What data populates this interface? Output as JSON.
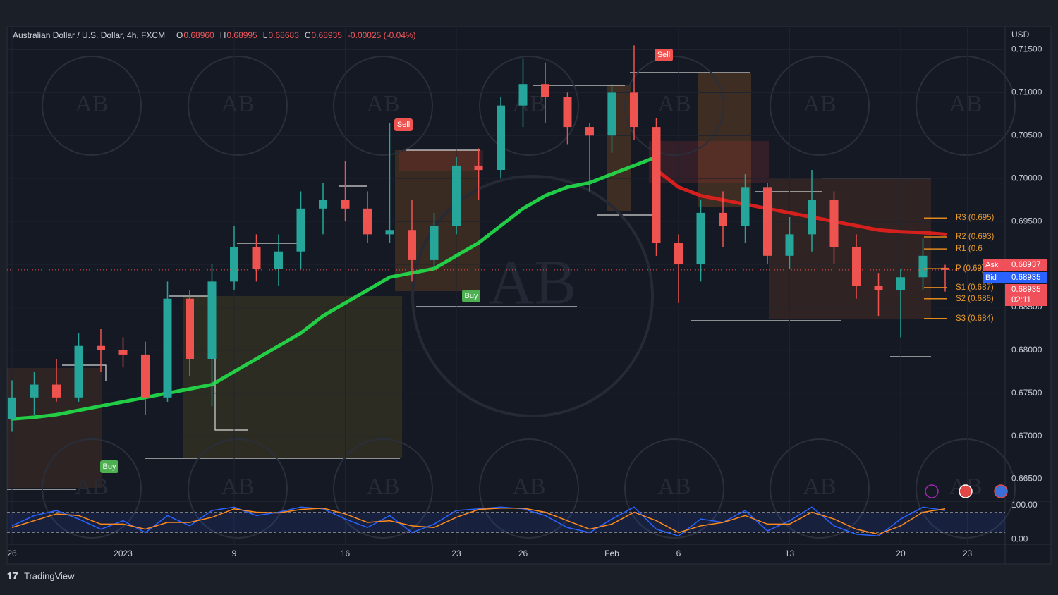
{
  "header": {
    "symbol": "Australian Dollar / U.S. Dollar, 4h, FXCM",
    "ohlc": [
      {
        "key": "O",
        "value": "0.68960"
      },
      {
        "key": "H",
        "value": "0.68995"
      },
      {
        "key": "L",
        "value": "0.68683"
      },
      {
        "key": "C",
        "value": "0.68935"
      }
    ],
    "change": "-0.00025 (-0.04%)"
  },
  "chart_data": {
    "type": "candlestick",
    "y_unit": "USD",
    "categories": [
      "26",
      null,
      null,
      null,
      null,
      "2023",
      null,
      null,
      null,
      null,
      "9",
      null,
      null,
      null,
      null,
      "16",
      null,
      null,
      null,
      null,
      "23",
      null,
      null,
      "26",
      null,
      null,
      null,
      "Feb",
      null,
      null,
      "6",
      null,
      null,
      null,
      null,
      "13",
      null,
      null,
      null,
      null,
      "20",
      null,
      null,
      "23"
    ],
    "open": [
      0.672,
      0.6745,
      0.676,
      0.6745,
      0.6805,
      0.68,
      0.6795,
      0.6745,
      0.686,
      0.679,
      0.688,
      0.692,
      0.6895,
      0.6915,
      0.6965,
      0.6975,
      0.6965,
      0.6935,
      0.694,
      0.6905,
      0.6945,
      0.7015,
      0.701,
      0.7085,
      0.711,
      0.7095,
      0.706,
      0.705,
      0.71,
      0.706,
      0.6925,
      0.69,
      0.696,
      0.6945,
      0.699,
      0.691,
      0.6935,
      0.6975,
      0.692,
      0.6875,
      0.687,
      0.6885,
      0.6896,
      null
    ],
    "high": [
      0.6765,
      0.6775,
      0.679,
      0.682,
      0.6825,
      0.6815,
      0.681,
      0.688,
      0.687,
      0.69,
      0.6945,
      0.6935,
      0.6935,
      0.6985,
      0.6995,
      0.702,
      0.6985,
      0.7065,
      0.6975,
      0.696,
      0.7025,
      0.7035,
      0.7095,
      0.714,
      0.7135,
      0.71,
      0.7065,
      0.711,
      0.7155,
      0.707,
      0.6935,
      0.6975,
      0.6985,
      0.7005,
      0.6995,
      0.6955,
      0.701,
      0.6985,
      0.6935,
      0.689,
      0.6895,
      0.693,
      0.68995,
      null
    ],
    "low": [
      0.6705,
      0.6725,
      0.674,
      0.674,
      0.6775,
      0.678,
      0.6725,
      0.674,
      0.677,
      0.6735,
      0.687,
      0.688,
      0.6875,
      0.6895,
      0.6935,
      0.695,
      0.6925,
      0.6925,
      0.688,
      0.6895,
      0.6935,
      0.6975,
      0.7,
      0.706,
      0.7065,
      0.704,
      0.6985,
      0.703,
      0.7045,
      0.691,
      0.6855,
      0.688,
      0.692,
      0.6925,
      0.69,
      0.6895,
      0.6915,
      0.69,
      0.686,
      0.684,
      0.6815,
      0.687,
      0.68683,
      null
    ],
    "close": [
      0.6745,
      0.676,
      0.6745,
      0.6805,
      0.68,
      0.6795,
      0.6745,
      0.686,
      0.679,
      0.688,
      0.692,
      0.6895,
      0.6915,
      0.6965,
      0.6975,
      0.6965,
      0.6935,
      0.694,
      0.6905,
      0.6945,
      0.7015,
      0.701,
      0.7085,
      0.711,
      0.7095,
      0.706,
      0.705,
      0.71,
      0.706,
      0.6925,
      0.69,
      0.696,
      0.6945,
      0.699,
      0.691,
      0.6935,
      0.6975,
      0.692,
      0.6875,
      0.687,
      0.6885,
      0.691,
      0.68935,
      null
    ],
    "up_color": "#26a69a",
    "down_color": "#ef5350",
    "series": [
      {
        "color": "#22e04a",
        "values": [
          0.672,
          0.6722,
          0.6725,
          0.673,
          0.6735,
          0.674,
          0.6745,
          0.675,
          0.6755,
          0.676,
          0.6775,
          0.679,
          0.6805,
          0.682,
          0.684,
          0.6855,
          0.687,
          0.6885,
          0.689,
          0.6895,
          0.691,
          0.6925,
          0.6945,
          0.6965,
          0.698,
          0.699,
          0.6995,
          0.7005,
          0.7015,
          0.7025,
          null,
          null,
          null,
          null,
          null,
          null,
          null,
          null,
          null,
          null,
          null,
          null,
          null,
          null
        ]
      },
      {
        "color": "#e8201e",
        "values": [
          null,
          null,
          null,
          null,
          null,
          null,
          null,
          null,
          null,
          null,
          null,
          null,
          null,
          null,
          null,
          null,
          null,
          null,
          null,
          null,
          null,
          null,
          null,
          null,
          null,
          null,
          null,
          null,
          null,
          0.701,
          0.699,
          0.698,
          0.6975,
          0.697,
          0.6965,
          0.696,
          0.6955,
          0.695,
          0.6945,
          0.694,
          0.6938,
          0.6937,
          0.6935,
          null
        ]
      }
    ],
    "ylim": [
      0.6625,
      0.7175
    ],
    "yticks": [
      {
        "value": 0.665,
        "label": "0.66500"
      },
      {
        "value": 0.67,
        "label": "0.67000"
      },
      {
        "value": 0.675,
        "label": "0.67500"
      },
      {
        "value": 0.68,
        "label": "0.68000"
      },
      {
        "value": 0.685,
        "label": "0.68500"
      },
      {
        "value": 0.69,
        "label": "0.69000"
      },
      {
        "value": 0.695,
        "label": "0.69500"
      },
      {
        "value": 0.7,
        "label": "0.70000"
      },
      {
        "value": 0.705,
        "label": "0.70500"
      },
      {
        "value": 0.71,
        "label": "0.71000"
      },
      {
        "value": 0.715,
        "label": "0.71500"
      }
    ],
    "grid": true,
    "pivots": [
      {
        "label": "R3 (0.695)",
        "value": 0.6954
      },
      {
        "label": "R2 (0.693)",
        "value": 0.6932
      },
      {
        "label": "R1 (0.6",
        "value": 0.6918
      },
      {
        "label": "P (0.69)",
        "value": 0.6895
      },
      {
        "label": "S1 (0.687)",
        "value": 0.6873
      },
      {
        "label": "S2 (0.686)",
        "value": 0.686
      },
      {
        "label": "S3 (0.684)",
        "value": 0.6837
      }
    ],
    "signals": [
      "Buy",
      "Sell",
      "Buy",
      "Sell"
    ],
    "badges": {
      "ask_label": "Ask",
      "ask": "0.68937",
      "bid_label": "Bid",
      "bid": "0.68935",
      "last": "0.68935",
      "timer": "02:11"
    },
    "oscillator": {
      "ylim": [
        -6,
        106
      ],
      "yticks": [
        {
          "value": 100,
          "label": "100.00"
        },
        {
          "value": 0,
          "label": "0.00"
        }
      ],
      "bands": [
        80,
        20
      ],
      "series": [
        {
          "color": "#2962ff",
          "values": [
            40,
            70,
            85,
            60,
            30,
            55,
            20,
            70,
            40,
            85,
            95,
            70,
            80,
            95,
            90,
            60,
            35,
            70,
            20,
            45,
            85,
            90,
            95,
            90,
            70,
            35,
            20,
            60,
            95,
            30,
            10,
            60,
            50,
            85,
            25,
            55,
            95,
            40,
            15,
            10,
            60,
            95,
            85,
            null
          ]
        },
        {
          "color": "#ff8a1e",
          "values": [
            35,
            55,
            75,
            70,
            45,
            45,
            30,
            50,
            50,
            65,
            90,
            80,
            78,
            88,
            92,
            75,
            50,
            55,
            40,
            35,
            65,
            88,
            92,
            92,
            80,
            55,
            30,
            45,
            80,
            55,
            20,
            40,
            50,
            70,
            45,
            45,
            80,
            60,
            30,
            15,
            40,
            80,
            90,
            null
          ]
        }
      ]
    },
    "watermark": "AB"
  },
  "footer": {
    "brand": "TradingView"
  }
}
